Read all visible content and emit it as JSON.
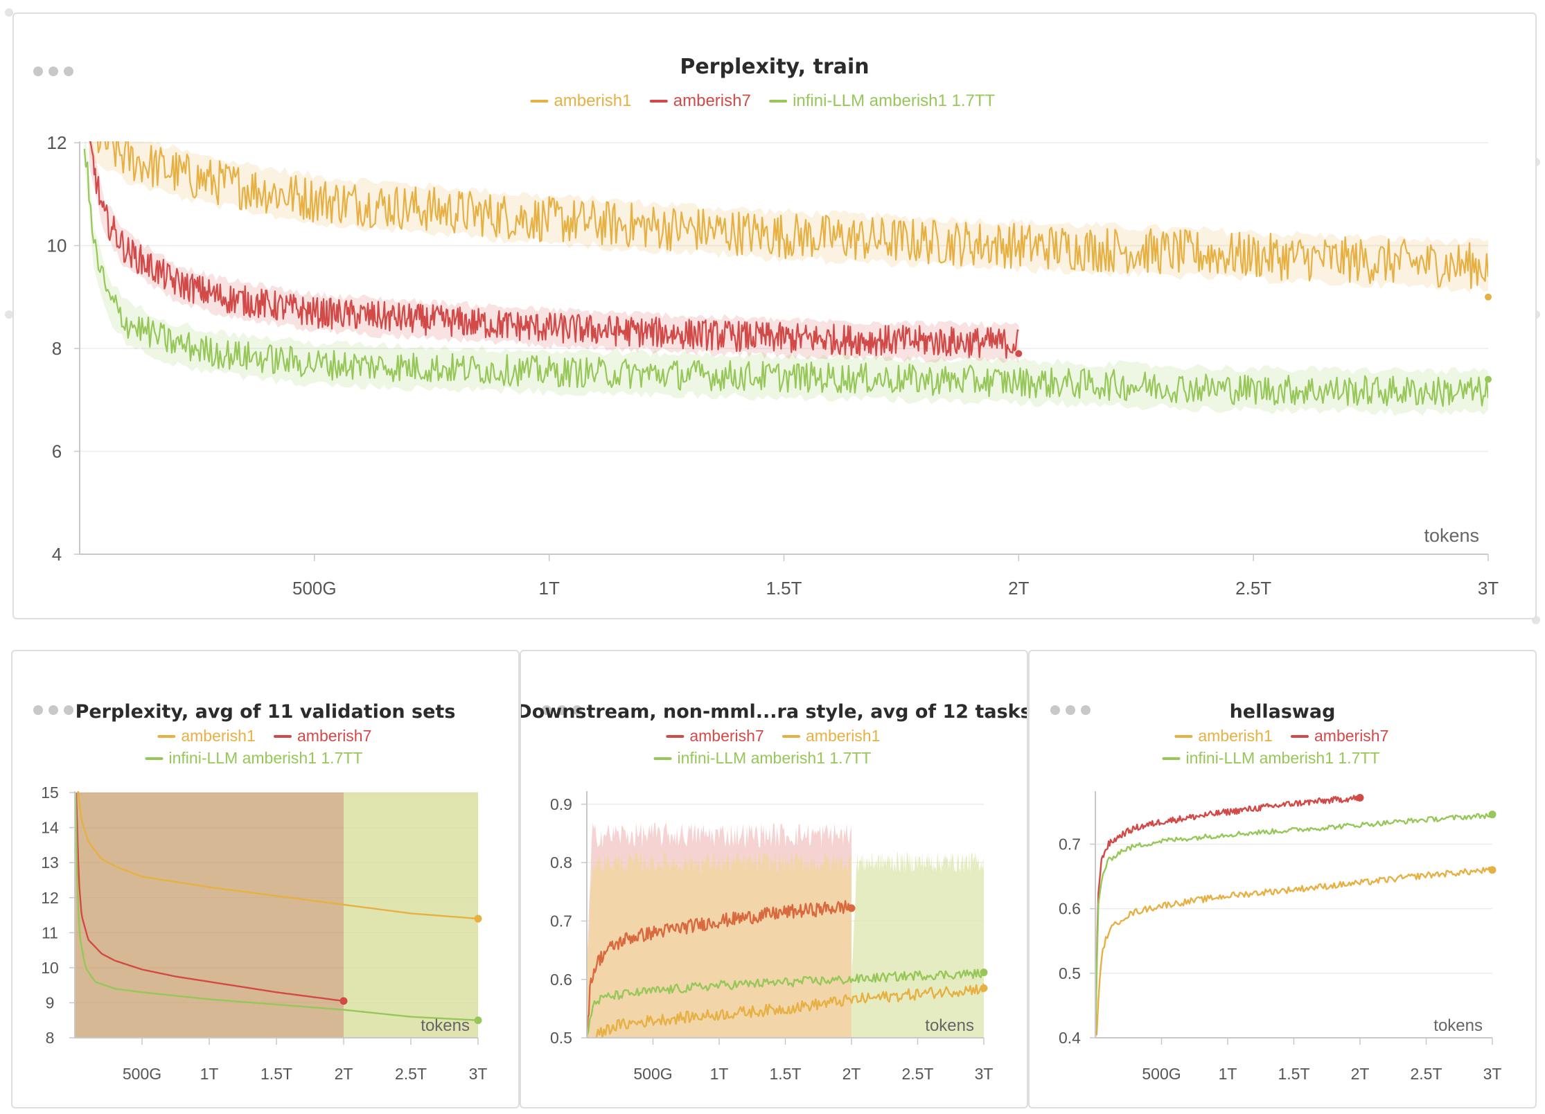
{
  "colors": {
    "amberish1": "#e6b043",
    "amberish7": "#d24a48",
    "infini": "#96c758",
    "downstream_amberish7": "#d96a40",
    "grid": "#ececec",
    "axis": "#c8c8c8"
  },
  "icons": {
    "panel_menu": "ellipsis-icon"
  },
  "chart_data": [
    {
      "id": "main",
      "type": "line",
      "title": "Perplexity, train",
      "xlabel": "tokens",
      "ylabel": "",
      "xlim": [
        0,
        3
      ],
      "ylim": [
        4,
        12
      ],
      "x_unit": "T tokens",
      "xticks": [
        0.5,
        1,
        1.5,
        2,
        2.5,
        3
      ],
      "xtick_labels": [
        "500G",
        "1T",
        "1.5T",
        "2T",
        "2.5T",
        "3T"
      ],
      "yticks": [
        4,
        6,
        8,
        10,
        12
      ],
      "ytick_labels": [
        "4",
        "6",
        "8",
        "10",
        "12"
      ],
      "grid": true,
      "legend_position": "top-center",
      "legend": [
        {
          "name": "amberish1",
          "color": "#e6b043"
        },
        {
          "name": "amberish7",
          "color": "#d24a48"
        },
        {
          "name": "infini-LLM amberish1 1.7TT",
          "color": "#96c758"
        }
      ],
      "series": [
        {
          "name": "amberish1",
          "color": "#e6b043",
          "noise": 0.45,
          "band": 0.45,
          "x": [
            0.02,
            0.1,
            0.25,
            0.5,
            1.0,
            1.5,
            2.0,
            2.5,
            3.0
          ],
          "y": [
            12.2,
            11.7,
            11.3,
            10.9,
            10.5,
            10.2,
            10.0,
            9.8,
            9.6
          ],
          "end": 9.0
        },
        {
          "name": "amberish7",
          "color": "#d24a48",
          "noise": 0.3,
          "band": 0.35,
          "x": [
            0.02,
            0.05,
            0.1,
            0.2,
            0.3,
            0.5,
            1.0,
            1.5,
            2.0
          ],
          "y": [
            12.0,
            10.6,
            9.9,
            9.3,
            9.0,
            8.7,
            8.4,
            8.2,
            8.1
          ],
          "end": 7.9
        },
        {
          "name": "infini-LLM amberish1 1.7TT",
          "color": "#96c758",
          "noise": 0.3,
          "band": 0.4,
          "x": [
            0.01,
            0.03,
            0.06,
            0.1,
            0.2,
            0.3,
            0.5,
            1.0,
            1.5,
            2.0,
            2.5,
            3.0
          ],
          "y": [
            12.0,
            10.0,
            9.0,
            8.5,
            8.1,
            7.9,
            7.7,
            7.55,
            7.45,
            7.35,
            7.2,
            7.15
          ],
          "end": 7.4
        }
      ]
    },
    {
      "id": "val",
      "type": "line",
      "title": "Perplexity, avg of 11 validation sets",
      "xlabel": "tokens",
      "ylabel": "",
      "xlim": [
        0,
        3
      ],
      "ylim": [
        8,
        15
      ],
      "xticks": [
        0.5,
        1,
        1.5,
        2,
        2.5,
        3
      ],
      "xtick_labels": [
        "500G",
        "1T",
        "1.5T",
        "2T",
        "2.5T",
        "3T"
      ],
      "yticks": [
        8,
        9,
        10,
        11,
        12,
        13,
        14,
        15
      ],
      "ytick_labels": [
        "8",
        "9",
        "10",
        "11",
        "12",
        "13",
        "14",
        "15"
      ],
      "grid": true,
      "legend_position": "top-center",
      "legend": [
        {
          "name": "amberish1",
          "color": "#e6b043"
        },
        {
          "name": "amberish7",
          "color": "#d24a48"
        },
        {
          "name": "infini-LLM amberish1 1.7TT",
          "color": "#96c758"
        }
      ],
      "shaded_regions": [
        {
          "x": [
            0,
            2
          ],
          "color": "#c8a070"
        },
        {
          "x": [
            2,
            3
          ],
          "color": "#d6dc96"
        }
      ],
      "series": [
        {
          "name": "amberish1",
          "color": "#e6b043",
          "noise": 0.0,
          "x": [
            0.02,
            0.05,
            0.1,
            0.2,
            0.3,
            0.5,
            0.75,
            1.0,
            1.5,
            2.0,
            2.5,
            3.0
          ],
          "y": [
            15.2,
            14.2,
            13.6,
            13.1,
            12.9,
            12.6,
            12.45,
            12.3,
            12.05,
            11.8,
            11.55,
            11.4
          ],
          "end": 11.4
        },
        {
          "name": "amberish7",
          "color": "#d24a48",
          "noise": 0.0,
          "x": [
            0.01,
            0.03,
            0.05,
            0.1,
            0.2,
            0.3,
            0.5,
            0.75,
            1.0,
            1.5,
            2.0
          ],
          "y": [
            15.0,
            12.5,
            11.5,
            10.8,
            10.4,
            10.2,
            9.95,
            9.75,
            9.6,
            9.3,
            9.05
          ],
          "end": 9.05
        },
        {
          "name": "infini-LLM amberish1 1.7TT",
          "color": "#96c758",
          "noise": 0.0,
          "x": [
            0.005,
            0.02,
            0.04,
            0.08,
            0.15,
            0.3,
            0.5,
            0.75,
            1.0,
            1.5,
            2.0,
            2.5,
            3.0
          ],
          "y": [
            15.0,
            12.0,
            10.8,
            10.0,
            9.6,
            9.4,
            9.3,
            9.2,
            9.1,
            8.95,
            8.8,
            8.6,
            8.5
          ],
          "end": 8.5
        }
      ]
    },
    {
      "id": "down",
      "type": "line",
      "title": "Downstream, non-mml...ra style, avg of 12 tasks",
      "xlabel": "tokens",
      "ylabel": "",
      "xlim": [
        0,
        3
      ],
      "ylim": [
        0.5,
        0.92
      ],
      "xticks": [
        0.5,
        1,
        1.5,
        2,
        2.5,
        3
      ],
      "xtick_labels": [
        "500G",
        "1T",
        "1.5T",
        "2T",
        "2.5T",
        "3T"
      ],
      "yticks": [
        0.5,
        0.6,
        0.7,
        0.8,
        0.9
      ],
      "ytick_labels": [
        "0.5",
        "0.6",
        "0.7",
        "0.8",
        "0.9"
      ],
      "grid": true,
      "legend_position": "top-center",
      "legend": [
        {
          "name": "amberish7",
          "color": "#d24a48"
        },
        {
          "name": "amberish1",
          "color": "#e6b043"
        },
        {
          "name": "infini-LLM amberish1 1.7TT",
          "color": "#96c758"
        }
      ],
      "bands": [
        {
          "x": [
            0,
            2
          ],
          "low": 0.5,
          "high": 0.87,
          "color": "#f2c4c4"
        },
        {
          "x": [
            0,
            2
          ],
          "low": 0.5,
          "high": 0.82,
          "color": "#f0d79c"
        },
        {
          "x": [
            2,
            3
          ],
          "low": 0.5,
          "high": 0.82,
          "color": "#dde5ac"
        }
      ],
      "series": [
        {
          "name": "amberish7",
          "color": "#d96a40",
          "noise": 0.012,
          "x": [
            0.0,
            0.03,
            0.08,
            0.15,
            0.3,
            0.5,
            0.75,
            1.0,
            1.5,
            2.0
          ],
          "y": [
            0.5,
            0.6,
            0.63,
            0.65,
            0.67,
            0.68,
            0.69,
            0.7,
            0.715,
            0.725
          ],
          "end": 0.722
        },
        {
          "name": "amberish1",
          "color": "#e6b043",
          "noise": 0.01,
          "x": [
            0.05,
            0.2,
            0.5,
            1.0,
            1.5,
            2.0,
            2.5,
            3.0
          ],
          "y": [
            0.5,
            0.52,
            0.53,
            0.54,
            0.55,
            0.565,
            0.575,
            0.585
          ],
          "end": 0.585
        },
        {
          "name": "infini-LLM amberish1 1.7TT",
          "color": "#96c758",
          "noise": 0.008,
          "x": [
            0.0,
            0.05,
            0.15,
            0.3,
            0.5,
            1.0,
            1.5,
            2.0,
            2.5,
            3.0
          ],
          "y": [
            0.5,
            0.56,
            0.57,
            0.575,
            0.58,
            0.59,
            0.595,
            0.6,
            0.607,
            0.61
          ],
          "end": 0.612
        }
      ]
    },
    {
      "id": "hella",
      "type": "line",
      "title": "hellaswag",
      "xlabel": "tokens",
      "ylabel": "",
      "xlim": [
        0,
        3
      ],
      "ylim": [
        0.4,
        0.78
      ],
      "xticks": [
        0.5,
        1,
        1.5,
        2,
        2.5,
        3
      ],
      "xtick_labels": [
        "500G",
        "1T",
        "1.5T",
        "2T",
        "2.5T",
        "3T"
      ],
      "yticks": [
        0.4,
        0.5,
        0.6,
        0.7
      ],
      "ytick_labels": [
        "0.4",
        "0.5",
        "0.6",
        "0.7"
      ],
      "grid": true,
      "legend_position": "top-center",
      "legend": [
        {
          "name": "amberish1",
          "color": "#e6b043"
        },
        {
          "name": "amberish7",
          "color": "#d24a48"
        },
        {
          "name": "infini-LLM amberish1 1.7TT",
          "color": "#96c758"
        }
      ],
      "series": [
        {
          "name": "amberish1",
          "color": "#e6b043",
          "noise": 0.005,
          "x": [
            0.01,
            0.03,
            0.06,
            0.1,
            0.2,
            0.3,
            0.5,
            1.0,
            1.5,
            2.0,
            2.5,
            3.0
          ],
          "y": [
            0.4,
            0.49,
            0.54,
            0.565,
            0.585,
            0.595,
            0.605,
            0.62,
            0.63,
            0.64,
            0.652,
            0.66
          ],
          "end": 0.66
        },
        {
          "name": "amberish7",
          "color": "#d24a48",
          "noise": 0.005,
          "x": [
            0.0,
            0.02,
            0.05,
            0.1,
            0.2,
            0.3,
            0.5,
            1.0,
            1.5,
            2.0
          ],
          "y": [
            0.4,
            0.62,
            0.68,
            0.7,
            0.715,
            0.725,
            0.735,
            0.75,
            0.763,
            0.772
          ],
          "end": 0.772
        },
        {
          "name": "infini-LLM amberish1 1.7TT",
          "color": "#96c758",
          "noise": 0.004,
          "x": [
            0.0,
            0.02,
            0.05,
            0.1,
            0.2,
            0.3,
            0.5,
            1.0,
            1.5,
            2.0,
            2.5,
            3.0
          ],
          "y": [
            0.4,
            0.6,
            0.65,
            0.675,
            0.69,
            0.697,
            0.705,
            0.715,
            0.722,
            0.73,
            0.738,
            0.745
          ],
          "end": 0.746
        }
      ]
    }
  ]
}
